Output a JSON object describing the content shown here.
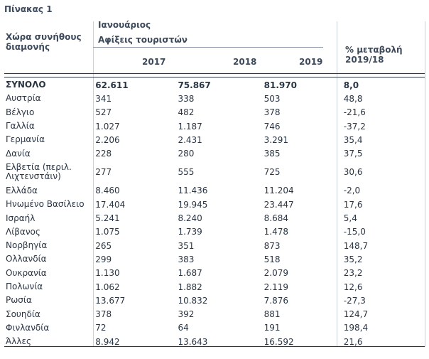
{
  "caption": "Πίνακας 1",
  "header": {
    "row_label": "Χώρα συνήθους διαμονής",
    "month": "Ιανουάριος",
    "measure": "Αφίξεις τουριστών",
    "years": [
      "2017",
      "2018",
      "2019"
    ],
    "change": "% μεταβολή 2019/18"
  },
  "total": {
    "label": "ΣΥΝΟΛΟ",
    "v2017": "62.611",
    "v2018": "75.867",
    "v2019": "81.970",
    "change": "8,0"
  },
  "rows": [
    {
      "label": "Αυστρία",
      "v2017": "341",
      "v2018": "338",
      "v2019": "503",
      "change": "48,8"
    },
    {
      "label": "Βέλγιο",
      "v2017": "527",
      "v2018": "482",
      "v2019": "378",
      "change": "-21,6"
    },
    {
      "label": "Γαλλία",
      "v2017": "1.027",
      "v2018": "1.187",
      "v2019": "746",
      "change": "-37,2"
    },
    {
      "label": "Γερμανία",
      "v2017": "2.206",
      "v2018": "2.431",
      "v2019": "3.291",
      "change": "35,4"
    },
    {
      "label": "Δανία",
      "v2017": "228",
      "v2018": "280",
      "v2019": "385",
      "change": "37,5"
    },
    {
      "label": "Ελβετία (περιλ. Λιχτενστάιν)",
      "v2017": "277",
      "v2018": "555",
      "v2019": "725",
      "change": "30,6"
    },
    {
      "label": "Ελλάδα",
      "v2017": "8.460",
      "v2018": "11.436",
      "v2019": "11.204",
      "change": "-2,0"
    },
    {
      "label": "Ηνωμένο Βασίλειο",
      "v2017": "17.404",
      "v2018": "19.945",
      "v2019": "23.447",
      "change": "17,6"
    },
    {
      "label": "Ισραήλ",
      "v2017": "5.241",
      "v2018": "8.240",
      "v2019": "8.684",
      "change": "5,4"
    },
    {
      "label": "Λίβανος",
      "v2017": "1.075",
      "v2018": "1.739",
      "v2019": "1.478",
      "change": "-15,0"
    },
    {
      "label": "Νορβηγία",
      "v2017": "265",
      "v2018": "351",
      "v2019": "873",
      "change": "148,7"
    },
    {
      "label": "Ολλανδία",
      "v2017": "299",
      "v2018": "383",
      "v2019": "518",
      "change": "35,2"
    },
    {
      "label": "Ουκρανία",
      "v2017": "1.130",
      "v2018": "1.687",
      "v2019": "2.079",
      "change": "23,2"
    },
    {
      "label": "Πολωνία",
      "v2017": "1.062",
      "v2018": "1.882",
      "v2019": "2.119",
      "change": "12,6"
    },
    {
      "label": "Ρωσία",
      "v2017": "13.677",
      "v2018": "10.832",
      "v2019": "7.876",
      "change": "-27,3"
    },
    {
      "label": "Σουηδία",
      "v2017": "378",
      "v2018": "392",
      "v2019": "881",
      "change": "124,7"
    },
    {
      "label": "Φινλανδία",
      "v2017": "72",
      "v2018": "64",
      "v2019": "191",
      "change": "198,4"
    },
    {
      "label": "Άλλες",
      "v2017": "8.942",
      "v2018": "13.643",
      "v2019": "16.592",
      "change": "21,6"
    }
  ]
}
